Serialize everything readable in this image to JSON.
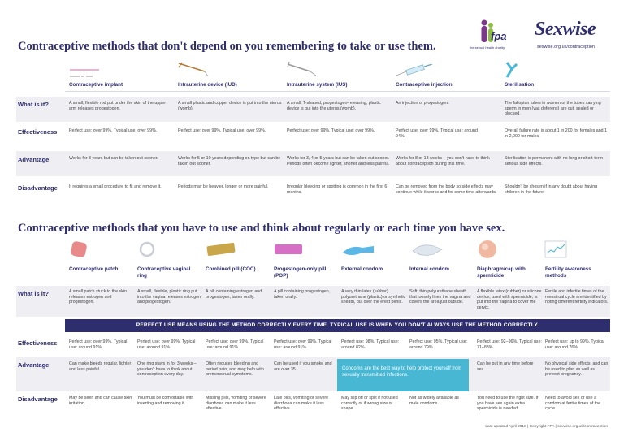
{
  "header": {
    "title1": "Contraceptive methods that don't depend on you remembering to take or use them.",
    "title2": "Contraceptive methods that you have to use and think about regularly or each time you have sex.",
    "fpa_logo_text": "fpa",
    "fpa_tagline": "the sexual health charity",
    "sexwise_logo_text": "Sexwise",
    "sexwise_url": "sexwise.org.uk/contraception"
  },
  "row_labels": {
    "what": "What is it?",
    "effectiveness": "Effectiveness",
    "advantage": "Advantage",
    "disadvantage": "Disadvantage"
  },
  "top_methods": [
    {
      "name": "Contraceptive implant",
      "what": "A small, flexible rod put under the skin of the upper arm releases progestogen.",
      "eff": "Perfect use: over 99%. Typical use: over 99%.",
      "adv": "Works for 3 years but can be taken out sooner.",
      "dis": "It requires a small procedure to fit and remove it."
    },
    {
      "name": "Intrauterine device (IUD)",
      "what": "A small plastic and copper device is put into the uterus (womb).",
      "eff": "Perfect use: over 99%. Typical use: over 99%.",
      "adv": "Works for 5 or 10 years depending on type but can be taken out sooner.",
      "dis": "Periods may be heavier, longer or more painful."
    },
    {
      "name": "Intrauterine system (IUS)",
      "what": "A small, T-shaped, progestogen-releasing, plastic device is put into the uterus (womb).",
      "eff": "Perfect use: over 99%. Typical use: over 99%.",
      "adv": "Works for 3, 4 or 5 years but can be taken out sooner. Periods often become lighter, shorter and less painful.",
      "dis": "Irregular bleeding or spotting is common in the first 6 months."
    },
    {
      "name": "Contraceptive injection",
      "what": "An injection of progestogen.",
      "eff": "Perfect use: over 99%. Typical use: around 94%.",
      "adv": "Works for 8 or 13 weeks – you don't have to think about contraception during this time.",
      "dis": "Can be removed from the body so side effects may continue while it works and for some time afterwards."
    },
    {
      "name": "Sterilisation",
      "what": "The fallopian tubes in women or the tubes carrying sperm in men (vas deferens) are cut, sealed or blocked.",
      "eff": "Overall failure rate is about 1 in 200 for females and 1 in 2,000 for males.",
      "adv": "Sterilisation is permanent with no long or short-term serious side effects.",
      "dis": "Shouldn't be chosen if in any doubt about having children in the future."
    }
  ],
  "banner": "PERFECT USE MEANS USING THE METHOD CORRECTLY EVERY TIME. TYPICAL USE IS WHEN YOU DON'T ALWAYS USE THE METHOD CORRECTLY.",
  "bottom_methods": [
    {
      "name": "Contraceptive patch",
      "what": "A small patch stuck to the skin releases estrogen and progestogen.",
      "eff": "Perfect use: over 99%. Typical use: around 91%.",
      "adv": "Can make bleeds regular, lighter and less painful.",
      "dis": "May be seen and can cause skin irritation."
    },
    {
      "name": "Contraceptive vaginal ring",
      "what": "A small, flexible, plastic ring put into the vagina releases estrogen and progestogen.",
      "eff": "Perfect use: over 99%. Typical use: around 91%.",
      "adv": "One ring stays in for 3 weeks – you don't have to think about contraception every day.",
      "dis": "You must be comfortable with inserting and removing it."
    },
    {
      "name": "Combined pill (COC)",
      "what": "A pill containing estrogen and progestogen, taken orally.",
      "eff": "Perfect use: over 99%. Typical use: around 91%.",
      "adv": "Often reduces bleeding and period pain, and may help with premenstrual symptoms.",
      "dis": "Missing pills, vomiting or severe diarrhoea can make it less effective."
    },
    {
      "name": "Progestogen-only pill (POP)",
      "what": "A pill containing progestogen, taken orally.",
      "eff": "Perfect use: over 99%. Typical use: around 91%.",
      "adv": "Can be used if you smoke and are over 35.",
      "dis": "Late pills, vomiting or severe diarrhoea can make it less effective."
    },
    {
      "name": "External condom",
      "what": "A very thin latex (rubber) polyurethane (plastic) or synthetic sheath, put over the erect penis.",
      "eff": "Perfect use: 98%. Typical use: around 82%.",
      "adv": "",
      "dis": "May slip off or split if not used correctly or if wrong size or shape."
    },
    {
      "name": "Internal condom",
      "what": "Soft, thin polyurethane sheath that loosely lines the vagina and covers the area just outside.",
      "eff": "Perfect use: 95%. Typical use: around 79%.",
      "adv": "",
      "dis": "Not as widely available as male condoms."
    },
    {
      "name": "Diaphragm/cap with spermicide",
      "what": "A flexible latex (rubber) or silicone device, used with spermicide, is put into the vagina to cover the cervix.",
      "eff": "Perfect use: 92–96%. Typical use: 71–88%.",
      "adv": "Can be put in any time before sex.",
      "dis": "You need to use the right size. If you have sex again extra spermicide is needed."
    },
    {
      "name": "Fertility awareness methods",
      "what": "Fertile and infertile times of the menstrual cycle are identified by noting different fertility indicators.",
      "eff": "Perfect use: up to 99%. Typical use: around 76%.",
      "adv": "No physical side effects, and can be used to plan as well as prevent pregnancy.",
      "dis": "Need to avoid sex or use a condom at fertile times of the cycle."
    }
  ],
  "condom_note": "Condoms are the best way to help protect yourself from sexually transmitted infections.",
  "footer": "Last updated April 2018 | Copyright FPA | sexwise.org.uk/contraception",
  "colors": {
    "navy": "#2e2d6e",
    "band": "#eeeef3",
    "cyan": "#47b7d4",
    "pink": "#e88a8a"
  },
  "icons": {
    "top": [
      "implant-rod-icon",
      "iud-icon",
      "ius-icon",
      "syringe-icon",
      "sterilisation-icon"
    ],
    "bottom": [
      "patch-icon",
      "ring-icon",
      "pill-strip-icon",
      "pop-strip-icon",
      "external-condom-icon",
      "internal-condom-icon",
      "diaphragm-icon",
      "fertility-chart-icon"
    ]
  }
}
